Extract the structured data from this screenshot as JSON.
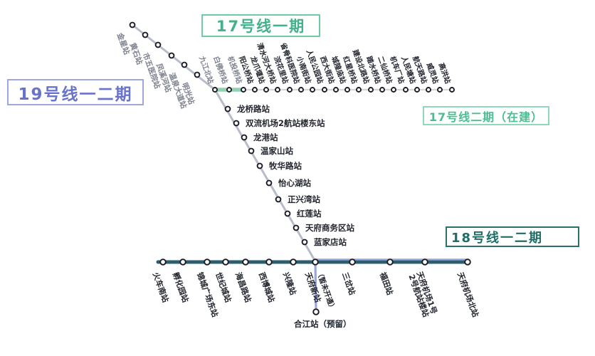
{
  "legend": {
    "line17_phase1": {
      "label": "17号线一期",
      "text_color": "#43b189",
      "border_color": "#6fcda6"
    },
    "line19": {
      "label": "19号线一二期",
      "text_color": "#6a73cb",
      "border_color": "#9fa7df"
    },
    "line17_phase2": {
      "label": "17号线二期（在建）",
      "text_color": "#4cbd92",
      "border_color": "#8fd8ba"
    },
    "line18": {
      "label": "18号线一二期",
      "text_color": "#1f6e65",
      "border_color": "#2a6f68"
    }
  },
  "colors": {
    "line19": "#b7bccb",
    "line19_branch": "#9aa6da",
    "line17_phase1": "#8fd3b2",
    "line17_phase2": "#d5d5d8",
    "line18": "#2c5e6e",
    "dot_fill": "#ffffff",
    "dot_stroke": "#1b1b26",
    "label_text": "#23262f",
    "label_text_muted": "#7d828e"
  },
  "stations": {
    "line19_upper": [
      "金星站",
      "黄石站",
      "市五医院站",
      "凤溪河站",
      "温泉大道站",
      "明光站"
    ],
    "line17_top": [
      "九江北站",
      "白佛桥站",
      "机投桥站",
      "阳公桥站",
      "龙爪堰站",
      "清水河大桥站",
      "浣花里站",
      "省骨科医院站",
      "小南街站",
      "人民公园站",
      "西大街站",
      "城隍庙站",
      "红星桥站",
      "建设北路站",
      "踏水桥站",
      "二仙桥站",
      "机车厂站",
      "人民塘站",
      "航天路站",
      "威灵站",
      "高洪站"
    ],
    "line19_lower": [
      "龙桥路站",
      "双流机场2航站楼东站",
      "龙港站",
      "温家山站",
      "牧华路站",
      "怡心湖站",
      "正兴湾站",
      "红莲站",
      "天府商务区站",
      "蓝家店站"
    ],
    "line18": [
      "火车南站",
      "孵化园站",
      "锦城广场东站",
      "世纪城站",
      "海昌路站",
      "西博城站",
      "兴隆站",
      "天府新站",
      "三岔站",
      "福田站",
      "天府机场1号2号航站楼站",
      "天府机场北站"
    ]
  },
  "notes": {
    "not_opened": "（暂未开通）",
    "reserved": "合江站（预留）"
  }
}
